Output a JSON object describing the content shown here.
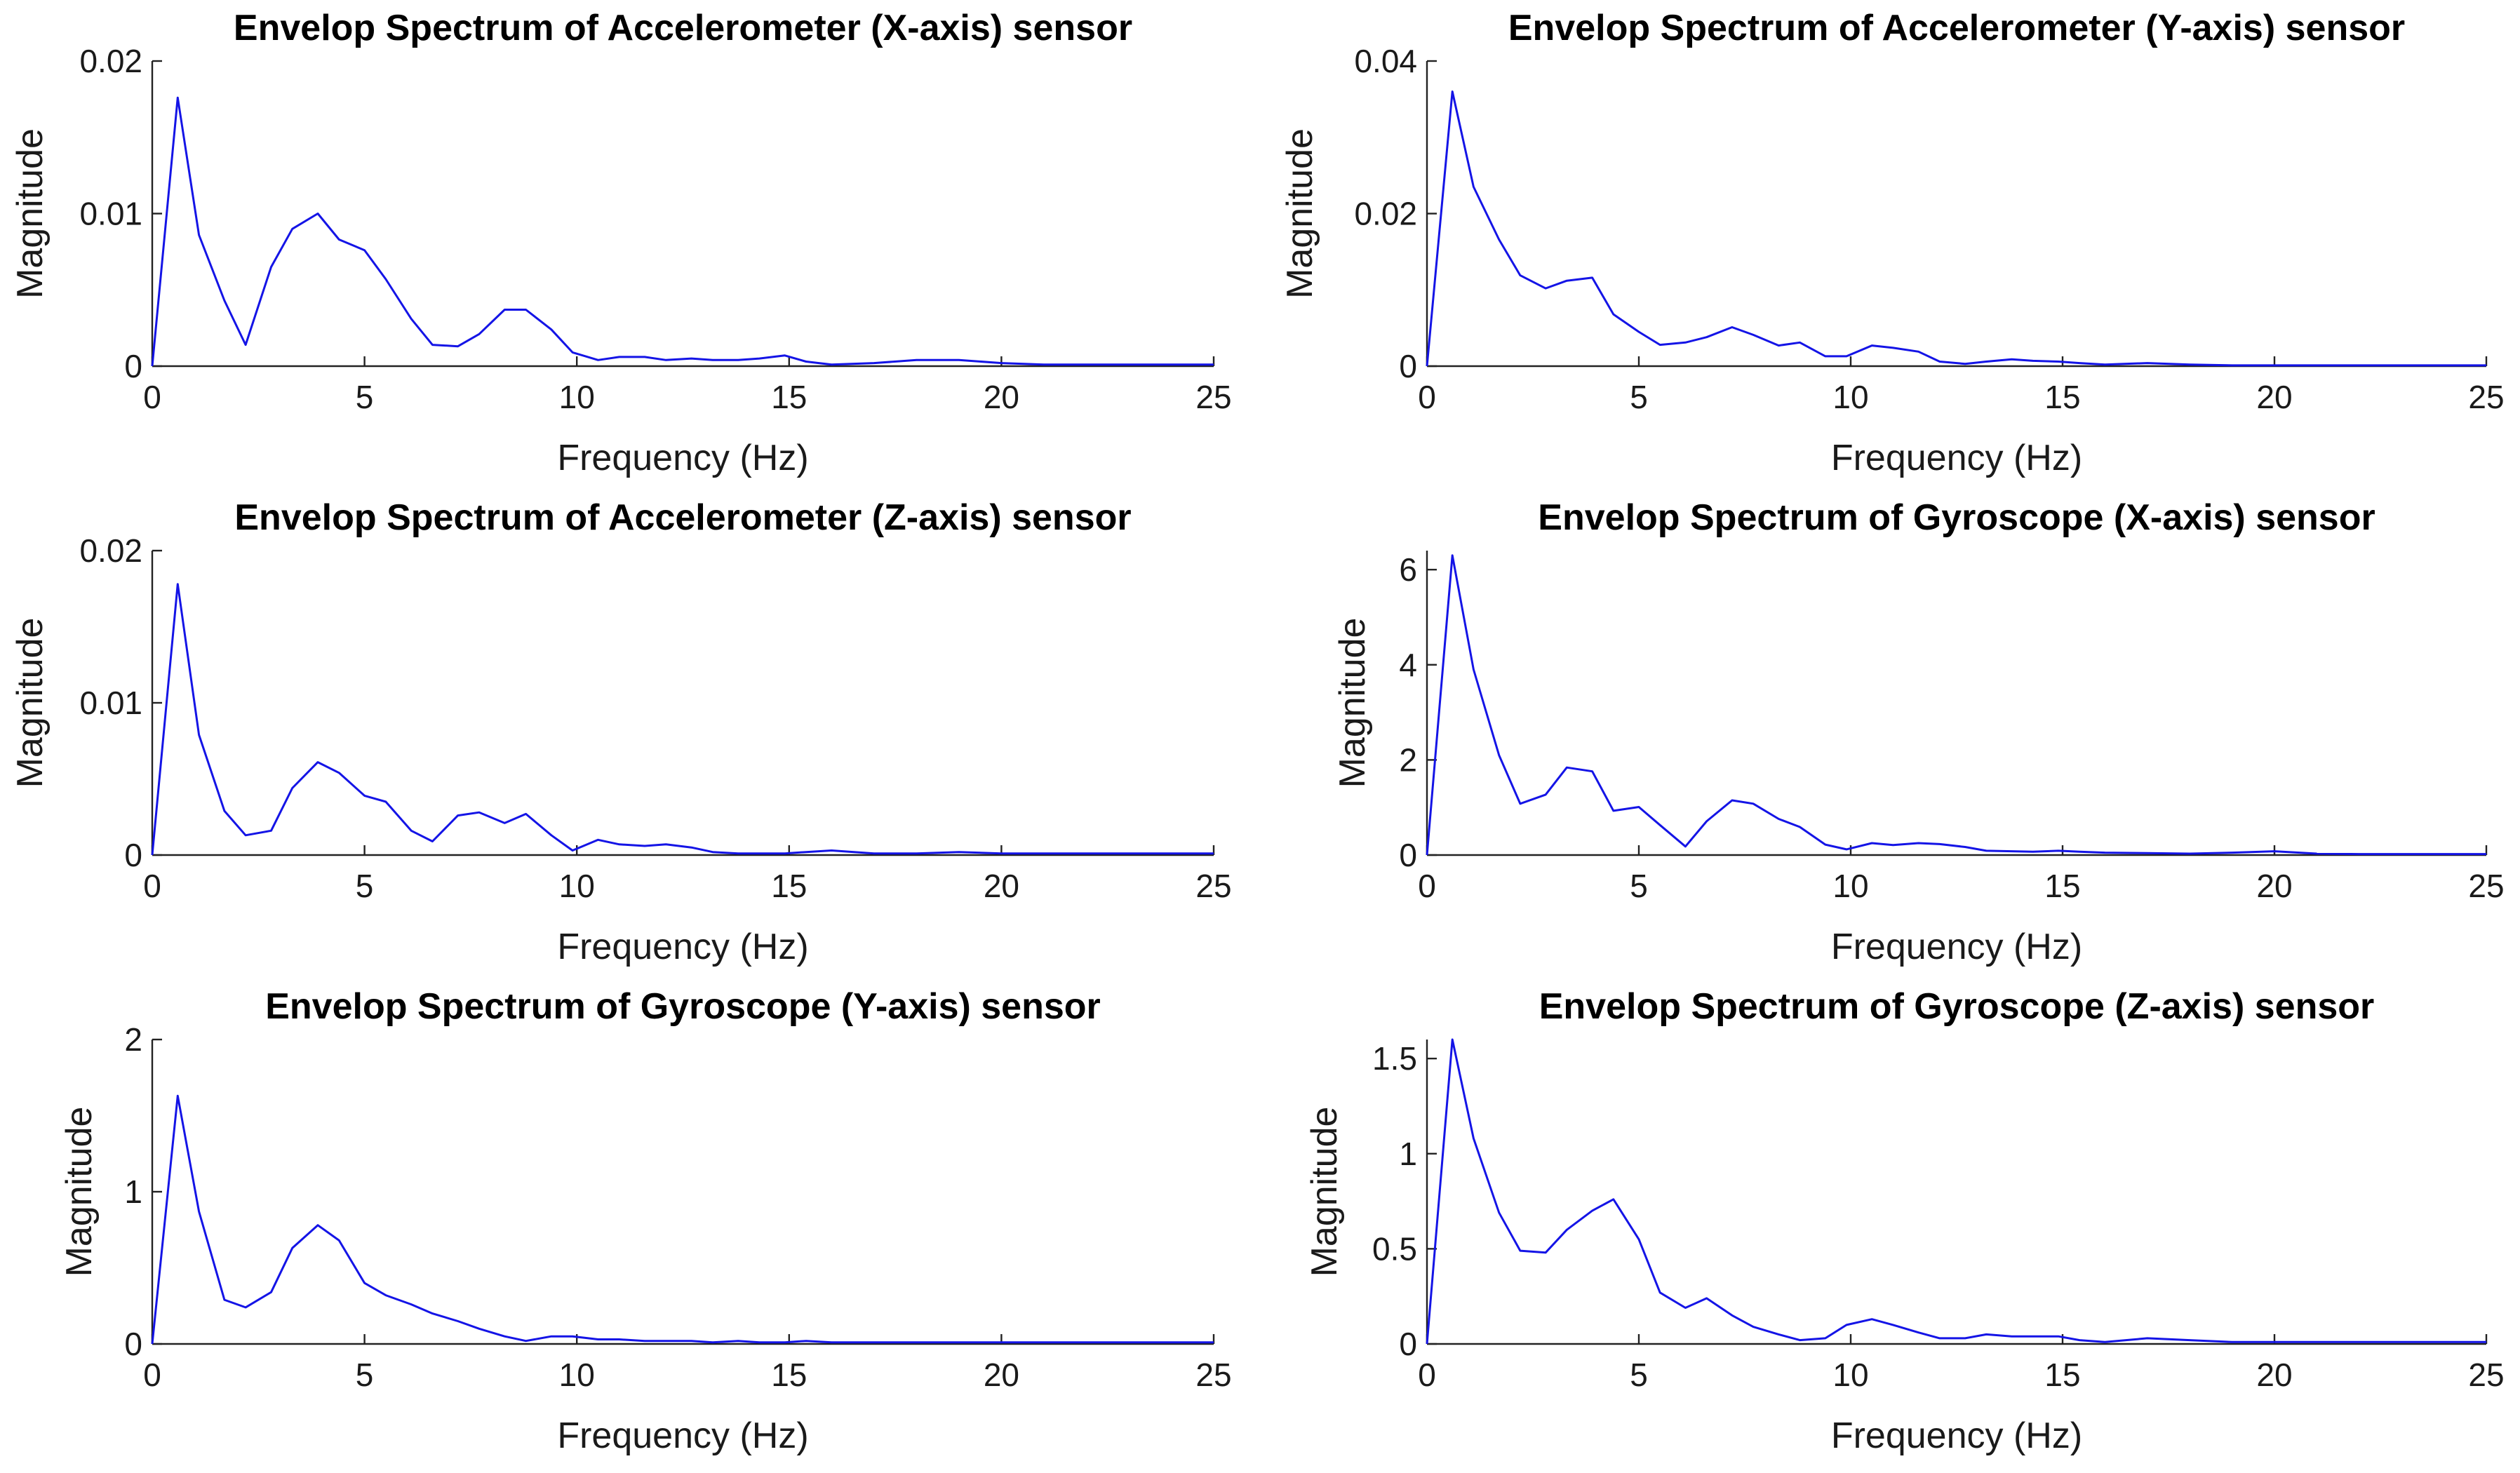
{
  "figure": {
    "line_color": "#1414e6",
    "axis_color": "#222222",
    "background": "#ffffff"
  },
  "chart_data": [
    {
      "type": "line",
      "title": "Envelop Spectrum of Accelerometer (X-axis) sensor",
      "xlabel": "Frequency (Hz)",
      "ylabel": "Magnitude",
      "xlim": [
        0,
        25
      ],
      "ylim": [
        0,
        0.02
      ],
      "xticks": [
        0,
        5,
        10,
        15,
        20,
        25
      ],
      "xtick_labels": [
        "0",
        "5",
        "10",
        "15",
        "20",
        "25"
      ],
      "yticks": [
        0,
        0.01,
        0.02
      ],
      "ytick_labels": [
        "0",
        "0.01",
        "0.02"
      ],
      "series": [
        {
          "name": "Accelerometer X",
          "x": [
            0,
            0.6,
            1.1,
            1.7,
            2.2,
            2.8,
            3.3,
            3.9,
            4.4,
            5.0,
            5.5,
            6.1,
            6.6,
            7.2,
            7.7,
            8.3,
            8.8,
            9.4,
            9.9,
            10.5,
            11.0,
            11.6,
            12.1,
            12.7,
            13.2,
            13.8,
            14.3,
            14.9,
            15.4,
            16.0,
            17.0,
            18.0,
            19.0,
            20.0,
            21.0,
            22.0,
            23.0,
            24.0,
            25.0
          ],
          "y": [
            0,
            0.0176,
            0.0086,
            0.0043,
            0.0014,
            0.0065,
            0.009,
            0.01,
            0.0083,
            0.0076,
            0.0057,
            0.0031,
            0.0014,
            0.0013,
            0.0021,
            0.0037,
            0.0037,
            0.0024,
            0.0009,
            0.0004,
            0.0006,
            0.0006,
            0.0004,
            0.0005,
            0.0004,
            0.0004,
            0.0005,
            0.0007,
            0.0003,
            0.0001,
            0.0002,
            0.0004,
            0.0004,
            0.0002,
            0.0001,
            0.0001,
            0.0001,
            0.0001,
            0.0001
          ]
        }
      ]
    },
    {
      "type": "line",
      "title": "Envelop Spectrum of Accelerometer (Y-axis) sensor",
      "xlabel": "Frequency (Hz)",
      "ylabel": "Magnitude",
      "xlim": [
        0,
        25
      ],
      "ylim": [
        0,
        0.04
      ],
      "xticks": [
        0,
        5,
        10,
        15,
        20,
        25
      ],
      "xtick_labels": [
        "0",
        "5",
        "10",
        "15",
        "20",
        "25"
      ],
      "yticks": [
        0,
        0.02,
        0.04
      ],
      "ytick_labels": [
        "0",
        "0.02",
        "0.04"
      ],
      "series": [
        {
          "name": "Accelerometer Y",
          "x": [
            0,
            0.6,
            1.1,
            1.7,
            2.2,
            2.8,
            3.3,
            3.9,
            4.4,
            5.0,
            5.5,
            6.1,
            6.6,
            7.2,
            7.7,
            8.3,
            8.8,
            9.4,
            9.9,
            10.5,
            11.0,
            11.6,
            12.1,
            12.7,
            13.2,
            13.8,
            14.3,
            14.9,
            15.4,
            16.0,
            17.0,
            18.0,
            19.0,
            20.0,
            21.0,
            22.0,
            23.0,
            24.0,
            25.0
          ],
          "y": [
            0,
            0.036,
            0.0235,
            0.0166,
            0.0119,
            0.0102,
            0.0112,
            0.0116,
            0.0068,
            0.0045,
            0.0028,
            0.0031,
            0.0038,
            0.0051,
            0.0041,
            0.0027,
            0.0031,
            0.0013,
            0.0013,
            0.0027,
            0.0024,
            0.0019,
            0.0006,
            0.0003,
            0.0006,
            0.0009,
            0.0007,
            0.0006,
            0.0004,
            0.0002,
            0.0004,
            0.0002,
            0.0001,
            0.0001,
            0.0001,
            0.0001,
            0.0001,
            0.0001,
            0.0001
          ]
        }
      ]
    },
    {
      "type": "line",
      "title": "Envelop Spectrum of Accelerometer (Z-axis) sensor",
      "xlabel": "Frequency (Hz)",
      "ylabel": "Magnitude",
      "xlim": [
        0,
        25
      ],
      "ylim": [
        0,
        0.02
      ],
      "xticks": [
        0,
        5,
        10,
        15,
        20,
        25
      ],
      "xtick_labels": [
        "0",
        "5",
        "10",
        "15",
        "20",
        "25"
      ],
      "yticks": [
        0,
        0.01,
        0.02
      ],
      "ytick_labels": [
        "0",
        "0.01",
        "0.02"
      ],
      "series": [
        {
          "name": "Accelerometer Z",
          "x": [
            0,
            0.6,
            1.1,
            1.7,
            2.2,
            2.8,
            3.3,
            3.9,
            4.4,
            5.0,
            5.5,
            6.1,
            6.6,
            7.2,
            7.7,
            8.3,
            8.8,
            9.4,
            9.9,
            10.5,
            11.0,
            11.6,
            12.1,
            12.7,
            13.2,
            13.8,
            14.3,
            14.9,
            15.4,
            16.0,
            17.0,
            18.0,
            19.0,
            20.0,
            21.0,
            22.0,
            23.0,
            24.0,
            25.0
          ],
          "y": [
            0,
            0.0178,
            0.0079,
            0.0029,
            0.0013,
            0.0016,
            0.0044,
            0.0061,
            0.0054,
            0.0039,
            0.0035,
            0.0016,
            0.0009,
            0.0026,
            0.0028,
            0.0021,
            0.0027,
            0.0013,
            0.0003,
            0.001,
            0.0007,
            0.0006,
            0.0007,
            0.0005,
            0.0002,
            0.0001,
            0.0001,
            0.0001,
            0.0002,
            0.0003,
            0.0001,
            0.0001,
            0.0002,
            0.0001,
            0.0001,
            0.0001,
            0.0001,
            0.0001,
            0.0001
          ]
        }
      ]
    },
    {
      "type": "line",
      "title": "Envelop Spectrum of Gyroscope (X-axis) sensor",
      "xlabel": "Frequency (Hz)",
      "ylabel": "Magnitude",
      "xlim": [
        0,
        25
      ],
      "ylim": [
        0,
        6.4
      ],
      "xticks": [
        0,
        5,
        10,
        15,
        20,
        25
      ],
      "xtick_labels": [
        "0",
        "5",
        "10",
        "15",
        "20",
        "25"
      ],
      "yticks": [
        0,
        2,
        4,
        6
      ],
      "ytick_labels": [
        "0",
        "2",
        "4",
        "6"
      ],
      "series": [
        {
          "name": "Gyroscope X",
          "x": [
            0,
            0.6,
            1.1,
            1.7,
            2.2,
            2.8,
            3.3,
            3.9,
            4.4,
            5.0,
            5.5,
            6.1,
            6.6,
            7.2,
            7.7,
            8.3,
            8.8,
            9.4,
            9.9,
            10.5,
            11.0,
            11.6,
            12.1,
            12.7,
            13.2,
            13.8,
            14.3,
            14.9,
            15.4,
            16.0,
            17.0,
            18.0,
            19.0,
            20.0,
            21.0,
            22.0,
            23.0,
            24.0,
            25.0
          ],
          "y": [
            0,
            6.3,
            3.9,
            2.1,
            1.08,
            1.27,
            1.84,
            1.76,
            0.93,
            1.01,
            0.63,
            0.18,
            0.71,
            1.15,
            1.08,
            0.76,
            0.59,
            0.22,
            0.12,
            0.25,
            0.21,
            0.25,
            0.23,
            0.17,
            0.09,
            0.08,
            0.07,
            0.09,
            0.07,
            0.05,
            0.04,
            0.03,
            0.05,
            0.08,
            0.03,
            0.02,
            0.02,
            0.02,
            0.02
          ]
        }
      ]
    },
    {
      "type": "line",
      "title": "Envelop Spectrum of Gyroscope (Y-axis) sensor",
      "xlabel": "Frequency (Hz)",
      "ylabel": "Magnitude",
      "xlim": [
        0,
        25
      ],
      "ylim": [
        0,
        2
      ],
      "xticks": [
        0,
        5,
        10,
        15,
        20,
        25
      ],
      "xtick_labels": [
        "0",
        "5",
        "10",
        "15",
        "20",
        "25"
      ],
      "yticks": [
        0,
        1,
        2
      ],
      "ytick_labels": [
        "0",
        "1",
        "2"
      ],
      "series": [
        {
          "name": "Gyroscope Y",
          "x": [
            0,
            0.6,
            1.1,
            1.7,
            2.2,
            2.8,
            3.3,
            3.9,
            4.4,
            5.0,
            5.5,
            6.1,
            6.6,
            7.2,
            7.7,
            8.3,
            8.8,
            9.4,
            9.9,
            10.5,
            11.0,
            11.6,
            12.1,
            12.7,
            13.2,
            13.8,
            14.3,
            14.9,
            15.4,
            16.0,
            17.0,
            18.0,
            19.0,
            20.0,
            21.0,
            22.0,
            23.0,
            24.0,
            25.0
          ],
          "y": [
            0,
            1.63,
            0.87,
            0.29,
            0.24,
            0.34,
            0.63,
            0.78,
            0.68,
            0.4,
            0.32,
            0.26,
            0.2,
            0.15,
            0.1,
            0.05,
            0.02,
            0.05,
            0.05,
            0.03,
            0.03,
            0.02,
            0.02,
            0.02,
            0.01,
            0.02,
            0.01,
            0.01,
            0.02,
            0.01,
            0.01,
            0.01,
            0.01,
            0.01,
            0.01,
            0.01,
            0.01,
            0.01,
            0.01
          ]
        }
      ]
    },
    {
      "type": "line",
      "title": "Envelop Spectrum of Gyroscope (Z-axis) sensor",
      "xlabel": "Frequency (Hz)",
      "ylabel": "Magnitude",
      "xlim": [
        0,
        25
      ],
      "ylim": [
        0,
        1.6
      ],
      "xticks": [
        0,
        5,
        10,
        15,
        20,
        25
      ],
      "xtick_labels": [
        "0",
        "5",
        "10",
        "15",
        "20",
        "25"
      ],
      "yticks": [
        0,
        0.5,
        1,
        1.5
      ],
      "ytick_labels": [
        "0",
        "0.5",
        "1",
        "1.5"
      ],
      "series": [
        {
          "name": "Gyroscope Z",
          "x": [
            0,
            0.6,
            1.1,
            1.7,
            2.2,
            2.8,
            3.3,
            3.9,
            4.4,
            5.0,
            5.5,
            6.1,
            6.6,
            7.2,
            7.7,
            8.3,
            8.8,
            9.4,
            9.9,
            10.5,
            11.0,
            11.6,
            12.1,
            12.7,
            13.2,
            13.8,
            14.3,
            14.9,
            15.4,
            16.0,
            17.0,
            18.0,
            19.0,
            20.0,
            21.0,
            22.0,
            23.0,
            24.0,
            25.0
          ],
          "y": [
            0,
            1.6,
            1.08,
            0.69,
            0.49,
            0.48,
            0.6,
            0.7,
            0.76,
            0.55,
            0.27,
            0.19,
            0.24,
            0.15,
            0.09,
            0.05,
            0.02,
            0.03,
            0.1,
            0.13,
            0.1,
            0.06,
            0.03,
            0.03,
            0.05,
            0.04,
            0.04,
            0.04,
            0.02,
            0.01,
            0.03,
            0.02,
            0.01,
            0.01,
            0.01,
            0.01,
            0.01,
            0.01,
            0.01
          ]
        }
      ]
    }
  ]
}
